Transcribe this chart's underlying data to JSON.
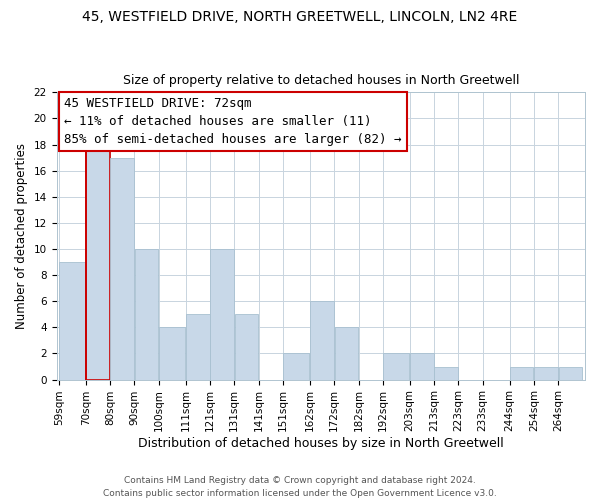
{
  "title": "45, WESTFIELD DRIVE, NORTH GREETWELL, LINCOLN, LN2 4RE",
  "subtitle": "Size of property relative to detached houses in North Greetwell",
  "xlabel": "Distribution of detached houses by size in North Greetwell",
  "ylabel": "Number of detached properties",
  "footnote1": "Contains HM Land Registry data © Crown copyright and database right 2024.",
  "footnote2": "Contains public sector information licensed under the Open Government Licence v3.0.",
  "bin_labels": [
    "59sqm",
    "70sqm",
    "80sqm",
    "90sqm",
    "100sqm",
    "111sqm",
    "121sqm",
    "131sqm",
    "141sqm",
    "151sqm",
    "162sqm",
    "172sqm",
    "182sqm",
    "192sqm",
    "203sqm",
    "213sqm",
    "223sqm",
    "233sqm",
    "244sqm",
    "254sqm",
    "264sqm"
  ],
  "bin_edges": [
    59,
    70,
    80,
    90,
    100,
    111,
    121,
    131,
    141,
    151,
    162,
    172,
    182,
    192,
    203,
    213,
    223,
    233,
    244,
    254,
    264,
    274
  ],
  "counts": [
    9,
    18,
    17,
    10,
    4,
    5,
    10,
    5,
    0,
    2,
    6,
    4,
    0,
    2,
    2,
    1,
    0,
    0,
    1,
    1,
    1
  ],
  "bar_color": "#c8d8e8",
  "bar_edgecolor": "#a8c0d0",
  "highlight_bar_index": 1,
  "highlight_bar_edgecolor": "#cc0000",
  "ylim": [
    0,
    22
  ],
  "yticks": [
    0,
    2,
    4,
    6,
    8,
    10,
    12,
    14,
    16,
    18,
    20,
    22
  ],
  "annotation_box_text": "45 WESTFIELD DRIVE: 72sqm\n← 11% of detached houses are smaller (11)\n85% of semi-detached houses are larger (82) →",
  "title_fontsize": 10,
  "subtitle_fontsize": 9,
  "xlabel_fontsize": 9,
  "ylabel_fontsize": 8.5,
  "tick_fontsize": 7.5,
  "annotation_fontsize": 9,
  "footnote_fontsize": 6.5,
  "background_color": "#ffffff",
  "grid_color": "#c8d4de",
  "vline_color": "#cc0000",
  "vline_x_index": 1
}
